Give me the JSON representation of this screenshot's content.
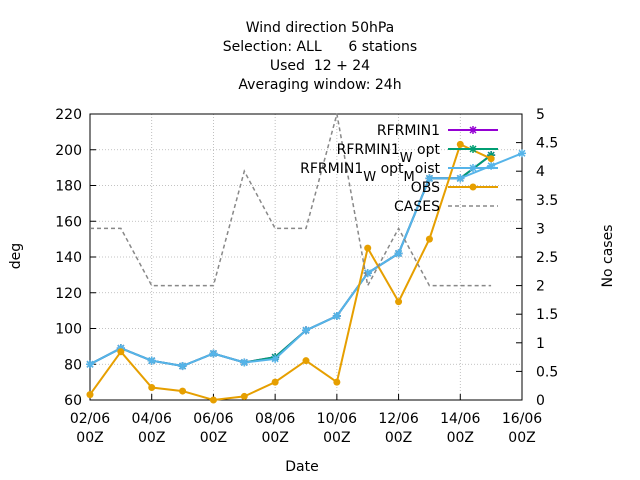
{
  "chart_data": {
    "type": "line",
    "title_lines": [
      "Wind direction 50hPa",
      "Selection: ALL      6 stations",
      "Used  12 + 24",
      "Averaging window: 24h"
    ],
    "xlabel": "Date",
    "ylabel": "deg",
    "y2label": "No cases",
    "xlim": [
      0,
      14
    ],
    "ylim": [
      60,
      220
    ],
    "y2lim": [
      0,
      5
    ],
    "x_ticks": [
      0,
      2,
      4,
      6,
      8,
      10,
      12,
      14
    ],
    "x_tick_labels": [
      [
        "02/06",
        "00Z"
      ],
      [
        "04/06",
        "00Z"
      ],
      [
        "06/06",
        "00Z"
      ],
      [
        "08/06",
        "00Z"
      ],
      [
        "10/06",
        "00Z"
      ],
      [
        "12/06",
        "00Z"
      ],
      [
        "14/06",
        "00Z"
      ],
      [
        "16/06",
        "00Z"
      ]
    ],
    "y_ticks": [
      60,
      80,
      100,
      120,
      140,
      160,
      180,
      200,
      220
    ],
    "y2_ticks": [
      "0",
      "0.5",
      "1",
      "1.5",
      "2",
      "2.5",
      "3",
      "3.5",
      "4",
      "4.5",
      "5"
    ],
    "grid": true,
    "legend_position": "top-right",
    "series": [
      {
        "name": "RFRMIN1",
        "legend_parts": [
          [
            "RFRMIN1",
            ""
          ]
        ],
        "color": "#9400d3",
        "marker": "star",
        "axis": "y",
        "x": [
          0,
          1,
          2,
          3,
          4,
          5,
          6,
          7,
          8,
          9,
          10,
          11,
          12,
          13
        ],
        "values": [
          80,
          89,
          82,
          79,
          86,
          81,
          84,
          99,
          107,
          131,
          142,
          184,
          184,
          197
        ]
      },
      {
        "name": "RFRMIN1_W opt",
        "legend_parts": [
          [
            "RFRMIN1",
            ""
          ],
          [
            "W",
            "sub"
          ],
          [
            " opt",
            ""
          ]
        ],
        "color": "#009e73",
        "marker": "star",
        "axis": "y",
        "x": [
          0,
          1,
          2,
          3,
          4,
          5,
          6,
          7,
          8,
          9,
          10,
          11,
          12,
          13
        ],
        "values": [
          80,
          89,
          82,
          79,
          86,
          81,
          84,
          99,
          107,
          131,
          142,
          184,
          184,
          197
        ]
      },
      {
        "name": "RFRMIN1_W opt_M oist",
        "legend_parts": [
          [
            "RFRMIN1",
            ""
          ],
          [
            "W",
            "sub"
          ],
          [
            " opt",
            ""
          ],
          [
            "M",
            "sub"
          ],
          [
            "oist",
            ""
          ]
        ],
        "color": "#56b4e9",
        "marker": "star",
        "axis": "y",
        "x": [
          0,
          1,
          2,
          3,
          4,
          5,
          6,
          7,
          8,
          9,
          10,
          11,
          12,
          13,
          14,
          15
        ],
        "values": [
          80,
          89,
          82,
          79,
          86,
          81,
          83,
          99,
          107,
          131,
          142,
          184,
          184,
          191,
          198,
          null
        ]
      },
      {
        "name": "OBS",
        "legend_parts": [
          [
            "OBS",
            ""
          ]
        ],
        "color": "#e69f00",
        "marker": "dot",
        "axis": "y",
        "x": [
          0,
          1,
          2,
          3,
          4,
          5,
          6,
          7,
          8,
          9,
          10,
          11,
          12,
          13,
          14,
          15
        ],
        "values": [
          63,
          87,
          67,
          65,
          60,
          62,
          70,
          82,
          70,
          145,
          115,
          150,
          203,
          195,
          null,
          null
        ]
      },
      {
        "name": "CASES",
        "legend_parts": [
          [
            "CASES",
            ""
          ]
        ],
        "color": "#888888",
        "marker": "none",
        "dash": true,
        "axis": "y2",
        "x": [
          0,
          1,
          2,
          3,
          4,
          5,
          6,
          7,
          8,
          9,
          10,
          11,
          12,
          13
        ],
        "values": [
          3,
          3,
          2,
          2,
          2,
          4,
          3,
          3,
          5,
          2,
          3,
          2,
          2,
          2
        ]
      }
    ]
  }
}
